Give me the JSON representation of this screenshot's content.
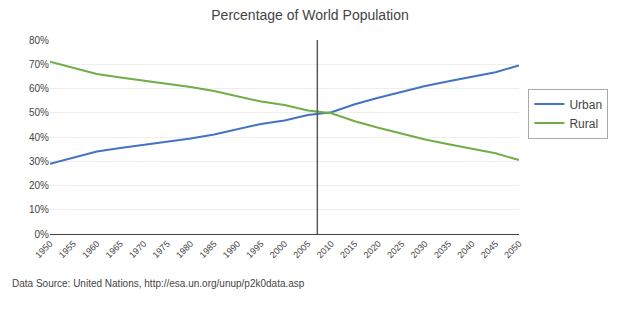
{
  "chart_data": {
    "type": "line",
    "title": "Percentage of World Population",
    "caption": "Data Source: United Nations, http://esa.un.org/unup/p2k0data.asp",
    "x": [
      1950,
      1955,
      1960,
      1965,
      1970,
      1975,
      1980,
      1985,
      1990,
      1995,
      2000,
      2005,
      2010,
      2015,
      2020,
      2025,
      2030,
      2035,
      2040,
      2045,
      2050
    ],
    "series": [
      {
        "name": "Urban",
        "color": "#4472C4",
        "values": [
          0.29,
          0.315,
          0.34,
          0.355,
          0.368,
          0.378,
          0.394,
          0.41,
          0.432,
          0.454,
          0.468,
          0.491,
          0.502,
          0.535,
          0.562,
          0.587,
          0.61,
          0.63,
          0.648,
          0.667,
          0.695
        ]
      },
      {
        "name": "Rural",
        "color": "#70AD47",
        "values": [
          0.71,
          0.685,
          0.66,
          0.645,
          0.632,
          0.622,
          0.606,
          0.59,
          0.568,
          0.546,
          0.532,
          0.509,
          0.498,
          0.465,
          0.438,
          0.413,
          0.39,
          0.37,
          0.352,
          0.333,
          0.305
        ]
      }
    ],
    "vlines": [
      {
        "x": 2007,
        "color": "#595959"
      }
    ],
    "xlim": [
      1950,
      2050
    ],
    "ylim": [
      0,
      0.8
    ],
    "xticks": [
      1950,
      1955,
      1960,
      1965,
      1970,
      1975,
      1980,
      1985,
      1990,
      1995,
      2000,
      2005,
      2010,
      2015,
      2020,
      2025,
      2030,
      2035,
      2040,
      2045,
      2050
    ],
    "yticks": [
      {
        "value": 0.0,
        "label": "0%"
      },
      {
        "value": 0.1,
        "label": "10%"
      },
      {
        "value": 0.2,
        "label": "20%"
      },
      {
        "value": 0.3,
        "label": "30%"
      },
      {
        "value": 0.4,
        "label": "40%"
      },
      {
        "value": 0.5,
        "label": "50%"
      },
      {
        "value": 0.6,
        "label": "60%"
      },
      {
        "value": 0.7,
        "label": "70%"
      },
      {
        "value": 0.8,
        "label": "80%"
      }
    ],
    "grid": "y",
    "legend": "right"
  }
}
